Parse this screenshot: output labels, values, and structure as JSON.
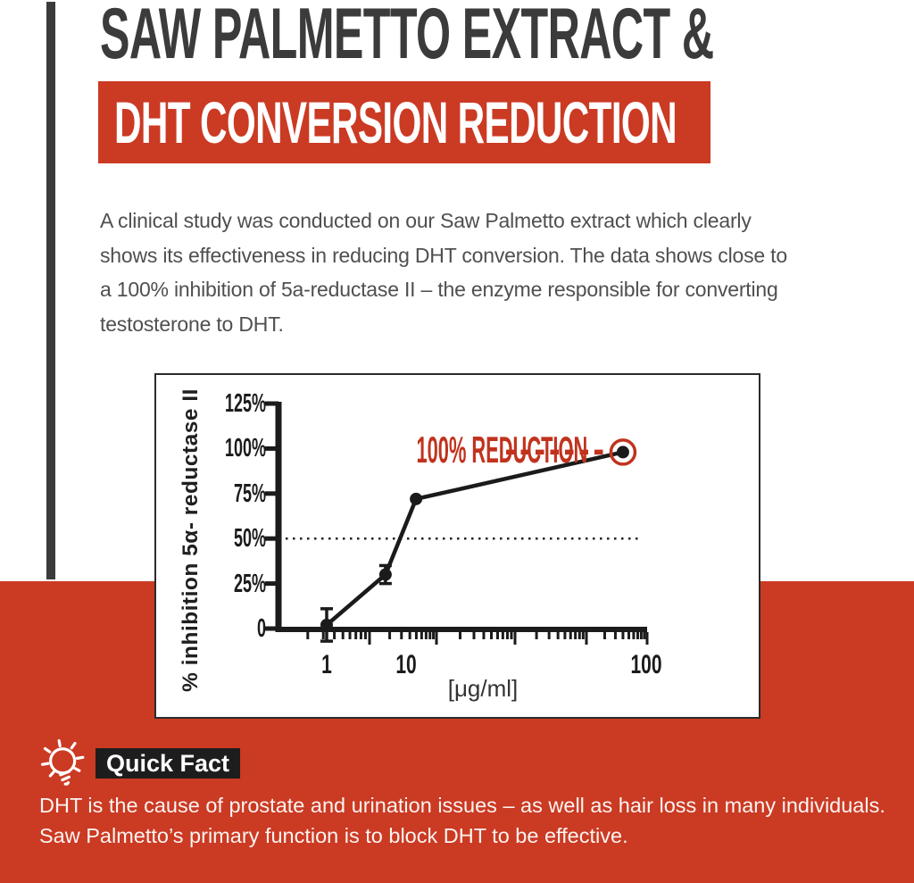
{
  "colors": {
    "red": "#cb3a23",
    "annotation_red": "#c1331d",
    "title_dark": "#3b3b3b",
    "ink": "#1b1b1b",
    "paragraph_gray": "#4f4f4f",
    "badge_black": "#1d1d1d",
    "white": "#ffffff"
  },
  "header": {
    "title_line1": "SAW PALMETTO EXTRACT &",
    "title_line2": "DHT CONVERSION REDUCTION"
  },
  "intro": {
    "lines": [
      "A clinical study was conducted on our Saw Palmetto extract which clearly",
      "shows its effectiveness in reducing DHT conversion. The data shows close to",
      "a 100% inhibition of 5a-reductase II – the enzyme responsible for converting",
      "testosterone to DHT."
    ]
  },
  "chart_data": {
    "type": "line",
    "title": "",
    "xlabel": "[μg/ml]",
    "ylabel": "% inhibition 5α- reductase II",
    "x_scale": "log",
    "xlim": [
      0.5,
      110
    ],
    "ylim": [
      0,
      125
    ],
    "grid": false,
    "points": [
      {
        "x_ugml": 1,
        "y_pct": 2,
        "y_err_pct": 9
      },
      {
        "x_ugml": 5.5,
        "y_pct": 30,
        "y_err_pct": 5
      },
      {
        "x_ugml": 11,
        "y_pct": 72,
        "y_err_pct": 0
      },
      {
        "x_ugml": 80,
        "y_pct": 98,
        "y_err_pct": 0
      }
    ],
    "y_ticks": {
      "values": [
        0,
        25,
        50,
        75,
        100,
        125
      ],
      "labels": [
        "0",
        "25%",
        "50%",
        "75%",
        "100%",
        "125%"
      ]
    },
    "x_ticks": {
      "values": [
        1,
        10,
        100
      ],
      "labels": [
        "1",
        "10",
        "100"
      ]
    },
    "reference_line": {
      "y_pct": 50,
      "style": "dotted"
    },
    "annotation": {
      "text": "100% REDUCTION",
      "target_point_index": 3,
      "style": "red dashed leader line ending in red circle around last data point"
    }
  },
  "quick_fact": {
    "icon": "lightbulb-icon",
    "label": "Quick Fact",
    "lines": [
      "DHT is the cause of prostate and urination issues – as well as hair loss in many individuals.",
      "Saw Palmetto’s primary function is to block DHT to be effective."
    ]
  }
}
